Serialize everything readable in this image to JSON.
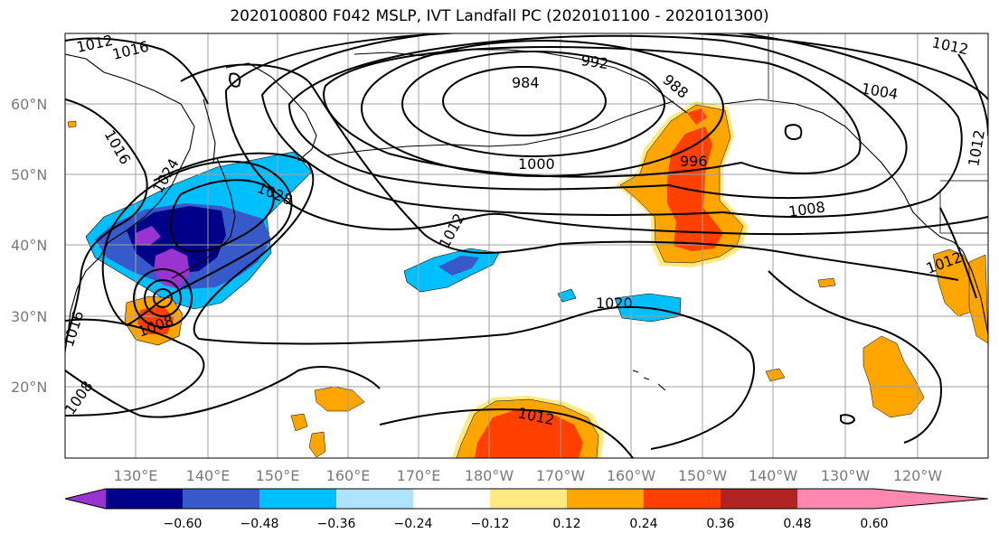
{
  "title": "2020100800 F042 MSLP, IVT Landfall PC (2020101100 - 2020101300)",
  "lon_labels": [
    "130°E",
    "140°E",
    "150°E",
    "160°E",
    "170°E",
    "180°W",
    "170°W",
    "160°W",
    "150°W",
    "140°W",
    "130°W",
    "120°W"
  ],
  "lat_labels": [
    "60°N",
    "50°N",
    "40°N",
    "30°N",
    "20°N"
  ],
  "colorbar": {
    "ticks": [
      "−0.60",
      "−0.48",
      "−0.36",
      "−0.24",
      "−0.12",
      "0.12",
      "0.24",
      "0.36",
      "0.48",
      "0.60"
    ],
    "colors": [
      "#9a34d0",
      "#000088",
      "#3759c9",
      "#00bfff",
      "#afe3ff",
      "#ffffff",
      "#ffe980",
      "#ffa500",
      "#ff4000",
      "#b22222",
      "#ff87b0"
    ]
  },
  "contour_labels": [
    {
      "text": "1012"
    },
    {
      "text": "1016"
    },
    {
      "text": "1016"
    },
    {
      "text": "1024"
    },
    {
      "text": "1028"
    },
    {
      "text": "1016"
    },
    {
      "text": "1008"
    },
    {
      "text": "1008"
    },
    {
      "text": "1012"
    },
    {
      "text": "992"
    },
    {
      "text": "984"
    },
    {
      "text": "988"
    },
    {
      "text": "1000"
    },
    {
      "text": "996"
    },
    {
      "text": "1008"
    },
    {
      "text": "1004"
    },
    {
      "text": "1012"
    },
    {
      "text": "1020"
    },
    {
      "text": "1012"
    },
    {
      "text": "1012"
    },
    {
      "text": "1012"
    }
  ]
}
